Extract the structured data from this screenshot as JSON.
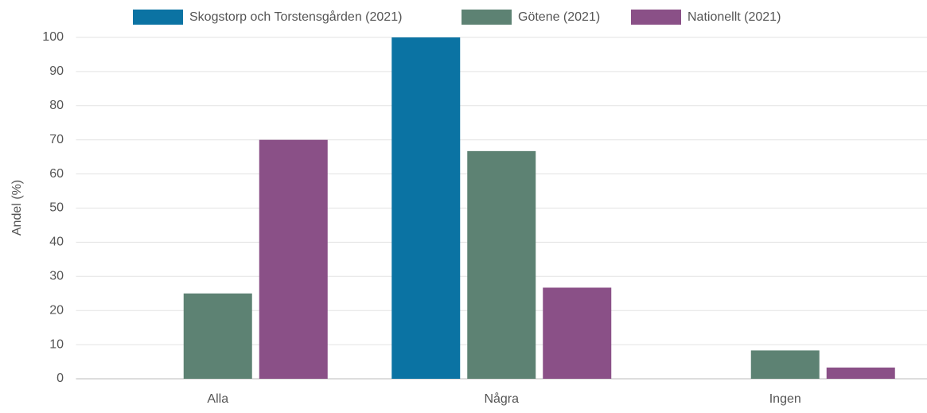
{
  "chart_data": {
    "type": "bar",
    "categories": [
      "Alla",
      "Några",
      "Ingen"
    ],
    "series": [
      {
        "name": "Skogstorp och Torstensgården (2021)",
        "color": "#0b73a3",
        "values": [
          0,
          100,
          0
        ]
      },
      {
        "name": "Götene (2021)",
        "color": "#5d8273",
        "values": [
          25,
          66.7,
          8.3
        ]
      },
      {
        "name": "Nationellt (2021)",
        "color": "#8a5087",
        "values": [
          70,
          26.7,
          3.3
        ]
      }
    ],
    "y_label": "Andel (%)",
    "ylim": [
      0,
      100
    ],
    "yticks": [
      0,
      10,
      20,
      30,
      40,
      50,
      60,
      70,
      80,
      90,
      100
    ],
    "grid": true,
    "legend": "top"
  }
}
